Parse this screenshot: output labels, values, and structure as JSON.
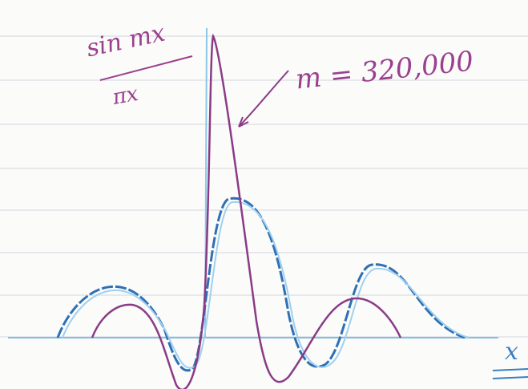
{
  "labels": {
    "numerator": "sin mx",
    "denominator": "πx",
    "parameter": "m = 320,000",
    "axis": "x"
  }
}
